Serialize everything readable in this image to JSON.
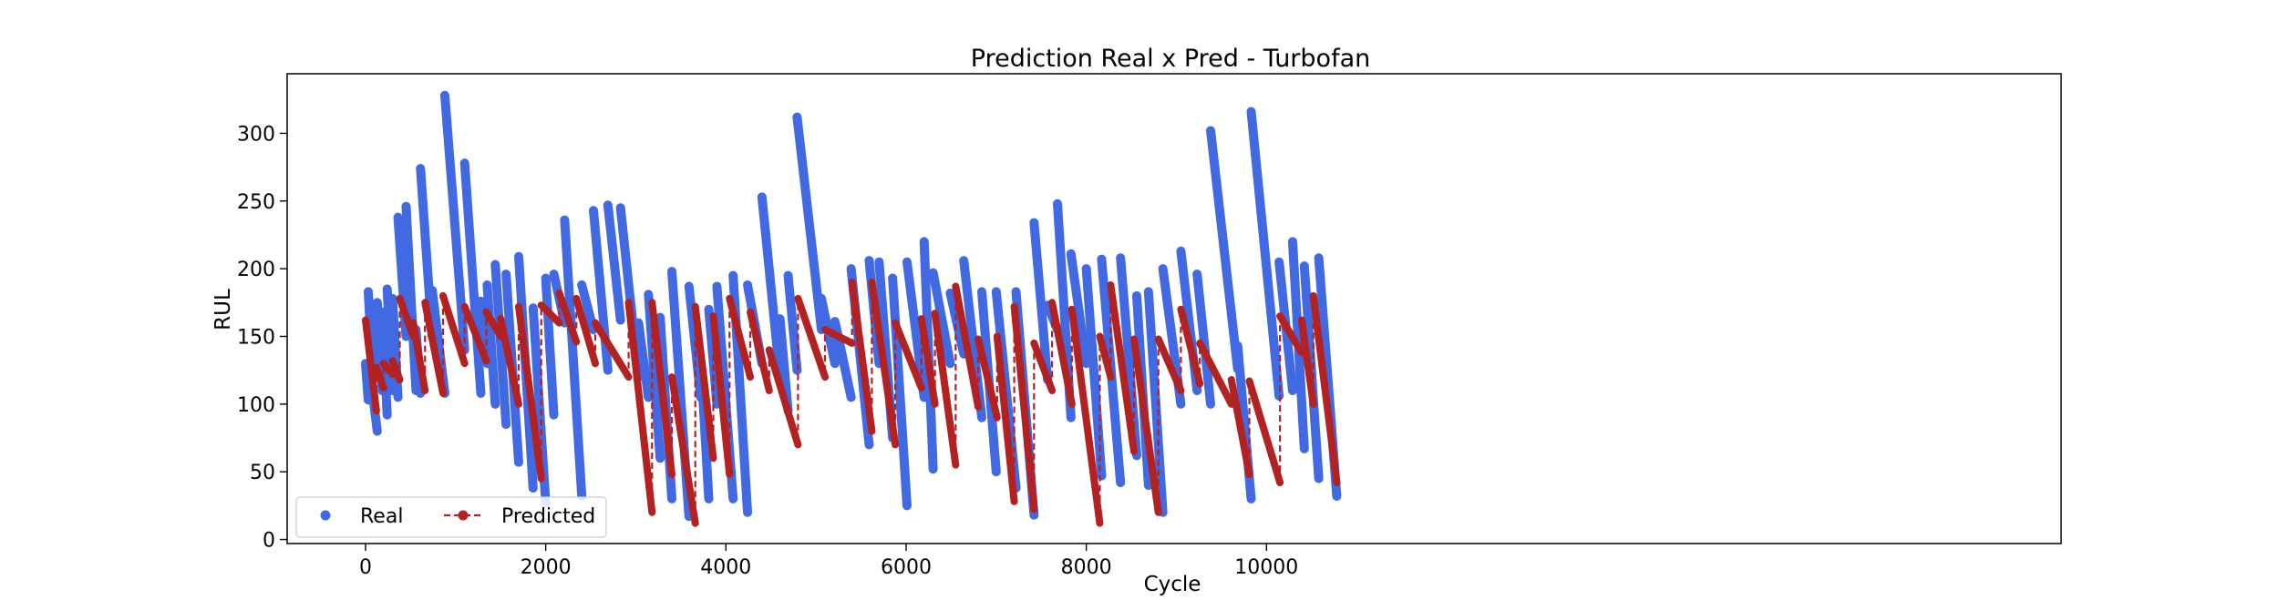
{
  "chart_data": {
    "type": "line",
    "title": "Prediction Real x Pred - Turbofan",
    "xlabel": "Cycle",
    "ylabel": "RUL",
    "xlim": [
      -870,
      18820
    ],
    "ylim": [
      -3,
      344
    ],
    "xticks": [
      0,
      2000,
      4000,
      6000,
      8000,
      10000
    ],
    "xtick_labels": [
      "0",
      "2000",
      "4000",
      "6000",
      "8000",
      "10000"
    ],
    "yticks": [
      0,
      50,
      100,
      150,
      200,
      250,
      300
    ],
    "ytick_labels": [
      "0",
      "50",
      "100",
      "150",
      "200",
      "250",
      "300"
    ],
    "grid": false,
    "legend_position": "lower-left",
    "series": [
      {
        "name": "Real",
        "style": "markers",
        "color": "#4169e1",
        "engines": [
          [
            0,
            130,
            30,
            103
          ],
          [
            30,
            183,
            75,
            130
          ],
          [
            75,
            110,
            130,
            80
          ],
          [
            130,
            175,
            185,
            110
          ],
          [
            185,
            168,
            240,
            92
          ],
          [
            240,
            185,
            300,
            110
          ],
          [
            300,
            178,
            360,
            105
          ],
          [
            360,
            238,
            450,
            150
          ],
          [
            450,
            246,
            560,
            110
          ],
          [
            560,
            155,
            610,
            108
          ],
          [
            610,
            274,
            740,
            150
          ],
          [
            740,
            184,
            880,
            108
          ],
          [
            880,
            328,
            1100,
            140
          ],
          [
            1100,
            278,
            1280,
            108
          ],
          [
            1280,
            176,
            1350,
            130
          ],
          [
            1350,
            188,
            1440,
            100
          ],
          [
            1440,
            203,
            1560,
            85
          ],
          [
            1560,
            196,
            1700,
            57
          ],
          [
            1700,
            209,
            1860,
            38
          ],
          [
            1860,
            171,
            2000,
            27
          ],
          [
            2000,
            193,
            2090,
            92
          ],
          [
            2090,
            196,
            2210,
            160
          ],
          [
            2210,
            236,
            2400,
            32
          ],
          [
            2400,
            188,
            2530,
            155
          ],
          [
            2530,
            243,
            2690,
            125
          ],
          [
            2690,
            247,
            2830,
            162
          ],
          [
            2830,
            245,
            3030,
            120
          ],
          [
            3030,
            160,
            3140,
            105
          ],
          [
            3140,
            181,
            3270,
            60
          ],
          [
            3270,
            164,
            3400,
            30
          ],
          [
            3400,
            198,
            3590,
            17
          ],
          [
            3590,
            187,
            3720,
            105
          ],
          [
            3720,
            133,
            3810,
            30
          ],
          [
            3810,
            170,
            3900,
            100
          ],
          [
            3900,
            187,
            4080,
            30
          ],
          [
            4080,
            195,
            4240,
            20
          ],
          [
            4240,
            188,
            4400,
            130
          ],
          [
            4400,
            253,
            4600,
            120
          ],
          [
            4600,
            163,
            4690,
            95
          ],
          [
            4690,
            195,
            4790,
            125
          ],
          [
            4790,
            312,
            5060,
            155
          ],
          [
            5060,
            178,
            5210,
            130
          ],
          [
            5210,
            161,
            5390,
            105
          ],
          [
            5390,
            200,
            5590,
            70
          ],
          [
            5590,
            206,
            5700,
            130
          ],
          [
            5700,
            205,
            5850,
            75
          ],
          [
            5850,
            193,
            6010,
            25
          ],
          [
            6010,
            205,
            6200,
            105
          ],
          [
            6200,
            220,
            6300,
            52
          ],
          [
            6300,
            197,
            6490,
            130
          ],
          [
            6490,
            182,
            6640,
            137
          ],
          [
            6640,
            206,
            6840,
            90
          ],
          [
            6840,
            183,
            7000,
            50
          ],
          [
            7000,
            183,
            7220,
            38
          ],
          [
            7220,
            183,
            7420,
            18
          ],
          [
            7420,
            234,
            7570,
            118
          ],
          [
            7570,
            173,
            7680,
            155
          ],
          [
            7680,
            248,
            7830,
            90
          ],
          [
            7830,
            211,
            8000,
            130
          ],
          [
            8000,
            200,
            8170,
            47
          ],
          [
            8170,
            207,
            8380,
            42
          ],
          [
            8380,
            208,
            8560,
            62
          ],
          [
            8560,
            180,
            8690,
            40
          ],
          [
            8690,
            183,
            8850,
            20
          ],
          [
            8850,
            200,
            9050,
            100
          ],
          [
            9050,
            213,
            9230,
            110
          ],
          [
            9230,
            196,
            9380,
            100
          ],
          [
            9380,
            302,
            9680,
            126
          ],
          [
            9680,
            143,
            9830,
            30
          ],
          [
            9830,
            316,
            10140,
            106
          ],
          [
            10140,
            205,
            10290,
            110
          ],
          [
            10290,
            220,
            10420,
            67
          ],
          [
            10420,
            202,
            10580,
            45
          ],
          [
            10580,
            208,
            10780,
            32
          ]
        ]
      },
      {
        "name": "Predicted",
        "style": "dashed-line-markers",
        "color": "#b22222",
        "engines": [
          [
            0,
            162,
            120,
            95
          ],
          [
            120,
            127,
            200,
            112
          ],
          [
            200,
            130,
            300,
            122
          ],
          [
            300,
            132,
            380,
            118
          ],
          [
            380,
            178,
            530,
            150
          ],
          [
            530,
            160,
            660,
            110
          ],
          [
            660,
            175,
            860,
            108
          ],
          [
            860,
            180,
            1100,
            130
          ],
          [
            1100,
            172,
            1340,
            132
          ],
          [
            1340,
            168,
            1500,
            150
          ],
          [
            1500,
            163,
            1700,
            100
          ],
          [
            1700,
            172,
            1950,
            45
          ],
          [
            1950,
            173,
            2150,
            160
          ],
          [
            2150,
            182,
            2340,
            146
          ],
          [
            2340,
            178,
            2550,
            130
          ],
          [
            2550,
            160,
            2920,
            120
          ],
          [
            2920,
            175,
            3180,
            20
          ],
          [
            3180,
            175,
            3400,
            48
          ],
          [
            3400,
            120,
            3660,
            12
          ],
          [
            3660,
            172,
            3860,
            60
          ],
          [
            3860,
            165,
            4040,
            48
          ],
          [
            4040,
            178,
            4270,
            120
          ],
          [
            4270,
            168,
            4480,
            110
          ],
          [
            4480,
            140,
            4800,
            70
          ],
          [
            4800,
            178,
            5100,
            120
          ],
          [
            5100,
            155,
            5400,
            145
          ],
          [
            5400,
            190,
            5620,
            80
          ],
          [
            5620,
            190,
            5880,
            70
          ],
          [
            5880,
            160,
            6170,
            112
          ],
          [
            6170,
            163,
            6320,
            100
          ],
          [
            6320,
            167,
            6550,
            55
          ],
          [
            6550,
            187,
            6800,
            98
          ],
          [
            6800,
            148,
            7010,
            90
          ],
          [
            7010,
            150,
            7200,
            28
          ],
          [
            7200,
            172,
            7420,
            22
          ],
          [
            7420,
            145,
            7620,
            110
          ],
          [
            7620,
            175,
            7840,
            100
          ],
          [
            7840,
            170,
            8150,
            12
          ],
          [
            8150,
            150,
            8270,
            120
          ],
          [
            8270,
            188,
            8530,
            65
          ],
          [
            8530,
            148,
            8800,
            20
          ],
          [
            8800,
            148,
            9050,
            110
          ],
          [
            9050,
            170,
            9260,
            115
          ],
          [
            9260,
            145,
            9610,
            100
          ],
          [
            9610,
            118,
            9810,
            48
          ],
          [
            9810,
            117,
            10150,
            42
          ],
          [
            10150,
            165,
            10390,
            138
          ],
          [
            10390,
            162,
            10520,
            100
          ],
          [
            10520,
            180,
            10780,
            42
          ]
        ]
      }
    ]
  }
}
